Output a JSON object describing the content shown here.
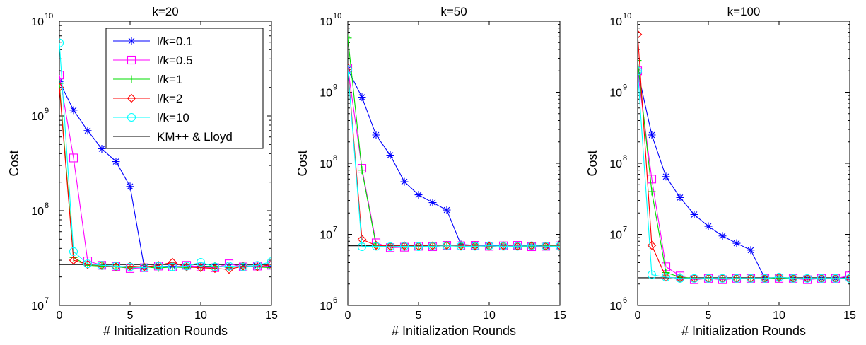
{
  "figure": {
    "colors": {
      "l/k=0.1": "#0000ff",
      "l/k=0.5": "#ff00ff",
      "l/k=1": "#00dd00",
      "l/k=2": "#ff0000",
      "l/k=10": "#00ffff",
      "KM++ & Lloyd": "#000000"
    },
    "markers": {
      "l/k=0.1": "asterisk",
      "l/k=0.5": "square",
      "l/k=1": "plus",
      "l/k=2": "diamond",
      "l/k=10": "circle",
      "KM++ & Lloyd": "none"
    }
  },
  "chart_data": [
    {
      "type": "line",
      "title": "k=20",
      "xlabel": "# Initialization Rounds",
      "ylabel": "Cost",
      "yscale": "log",
      "xlim": [
        0,
        15
      ],
      "ylim": [
        10000000,
        10000000000
      ],
      "xticks": [
        "0",
        "5",
        "10",
        "15"
      ],
      "yticks": [
        {
          "base": "10",
          "exp": "7"
        },
        {
          "base": "10",
          "exp": "8"
        },
        {
          "base": "10",
          "exp": "9"
        },
        {
          "base": "10",
          "exp": "10"
        }
      ],
      "legend": {
        "position": "top-right",
        "entries": [
          "l/k=0.1",
          "l/k=0.5",
          "l/k=1",
          "l/k=2",
          "l/k=10",
          "KM++ & Lloyd"
        ]
      },
      "x": [
        0,
        1,
        2,
        3,
        4,
        5,
        6,
        7,
        8,
        9,
        10,
        11,
        12,
        13,
        14,
        15
      ],
      "series": [
        {
          "name": "l/k=0.1",
          "values": [
            2300000000,
            1150000000,
            700000000,
            450000000,
            330000000,
            180000000,
            25500000,
            25800000,
            26000000,
            25600000,
            26000000,
            25800000,
            25500000,
            26000000,
            26200000,
            26000000
          ]
        },
        {
          "name": "l/k=0.5",
          "values": [
            2700000000,
            360000000,
            29500000,
            26500000,
            25800000,
            24500000,
            25000000,
            26000000,
            25500000,
            26500000,
            25500000,
            25000000,
            27500000,
            25500000,
            26000000,
            26500000
          ]
        },
        {
          "name": "l/k=1",
          "values": [
            2200000000,
            32000000,
            26500000,
            26000000,
            25500000,
            25000000,
            25500000,
            24800000,
            25500000,
            25000000,
            25600000,
            26000000,
            25200000,
            25800000,
            25500000,
            25000000
          ]
        },
        {
          "name": "l/k=2",
          "values": [
            2000000000,
            30000000,
            27000000,
            26500000,
            25500000,
            26000000,
            25500000,
            26500000,
            28500000,
            25500000,
            25000000,
            24500000,
            24000000,
            26000000,
            25500000,
            27000000
          ]
        },
        {
          "name": "l/k=10",
          "values": [
            5900000000,
            37000000,
            27500000,
            26500000,
            26000000,
            25500000,
            25000000,
            26000000,
            25500000,
            26000000,
            28500000,
            25500000,
            26000000,
            25500000,
            26500000,
            29000000
          ]
        },
        {
          "name": "KM++ & Lloyd",
          "values": [
            27000000,
            27000000,
            27000000,
            27000000,
            27000000,
            27000000,
            27000000,
            27000000,
            27000000,
            27000000,
            27000000,
            27000000,
            27000000,
            27000000,
            27000000,
            27000000
          ]
        }
      ]
    },
    {
      "type": "line",
      "title": "k=50",
      "xlabel": "# Initialization Rounds",
      "ylabel": "Cost",
      "yscale": "log",
      "xlim": [
        0,
        15
      ],
      "ylim": [
        1000000,
        10000000000
      ],
      "xticks": [
        "0",
        "5",
        "10",
        "15"
      ],
      "yticks": [
        {
          "base": "10",
          "exp": "6"
        },
        {
          "base": "10",
          "exp": "7"
        },
        {
          "base": "10",
          "exp": "8"
        },
        {
          "base": "10",
          "exp": "9"
        },
        {
          "base": "10",
          "exp": "10"
        }
      ],
      "x": [
        0,
        1,
        2,
        3,
        4,
        5,
        6,
        7,
        8,
        9,
        10,
        11,
        12,
        13,
        14,
        15
      ],
      "series": [
        {
          "name": "l/k=0.1",
          "values": [
            2100000000,
            850000000,
            250000000,
            130000000,
            55000000,
            36000000,
            28000000,
            22000000,
            7200000,
            7000000,
            7000000,
            6900000,
            6800000,
            6900000,
            6800000,
            6900000
          ]
        },
        {
          "name": "l/k=0.5",
          "values": [
            2200000000,
            85000000,
            7600000,
            6500000,
            6600000,
            6800000,
            6700000,
            7000000,
            6900000,
            7000000,
            6800000,
            6900000,
            7000000,
            6700000,
            6800000,
            6900000
          ]
        },
        {
          "name": "l/k=1",
          "values": [
            5800000000,
            80000000,
            7000000,
            6700000,
            6600000,
            6700000,
            6800000,
            6900000,
            6800000,
            6900000,
            6800000,
            6900000,
            6800000,
            6800000,
            6900000,
            6900000
          ]
        },
        {
          "name": "l/k=2",
          "values": [
            2200000000,
            8500000,
            7000000,
            6800000,
            6900000,
            6800000,
            6900000,
            7000000,
            6900000,
            6900000,
            6800000,
            6900000,
            6800000,
            6900000,
            6800000,
            6900000
          ]
        },
        {
          "name": "l/k=10",
          "values": [
            2100000000,
            6700000,
            6800000,
            6700000,
            6800000,
            6700000,
            6800000,
            6900000,
            6800000,
            6800000,
            6900000,
            6800000,
            6800000,
            6900000,
            6800000,
            6800000
          ]
        },
        {
          "name": "KM++ & Lloyd",
          "values": [
            6900000,
            6900000,
            6900000,
            6900000,
            6900000,
            6900000,
            6900000,
            6900000,
            6900000,
            6900000,
            6900000,
            6900000,
            6900000,
            6900000,
            6900000,
            6900000
          ]
        }
      ]
    },
    {
      "type": "line",
      "title": "k=100",
      "xlabel": "# Initialization Rounds",
      "ylabel": "Cost",
      "yscale": "log",
      "xlim": [
        0,
        15
      ],
      "ylim": [
        1000000,
        10000000000
      ],
      "xticks": [
        "0",
        "5",
        "10",
        "15"
      ],
      "yticks": [
        {
          "base": "10",
          "exp": "6"
        },
        {
          "base": "10",
          "exp": "7"
        },
        {
          "base": "10",
          "exp": "8"
        },
        {
          "base": "10",
          "exp": "9"
        },
        {
          "base": "10",
          "exp": "10"
        }
      ],
      "x": [
        0,
        1,
        2,
        3,
        4,
        5,
        6,
        7,
        8,
        9,
        10,
        11,
        12,
        13,
        14,
        15
      ],
      "series": [
        {
          "name": "l/k=0.1",
          "values": [
            2000000000,
            250000000,
            65000000,
            33000000,
            19000000,
            13000000,
            9500000,
            7500000,
            6000000,
            2400000,
            2400000,
            2400000,
            2400000,
            2400000,
            2400000,
            2400000
          ]
        },
        {
          "name": "l/k=0.5",
          "values": [
            2000000000,
            60000000,
            3500000,
            2600000,
            2300000,
            2400000,
            2300000,
            2400000,
            2400000,
            2400000,
            2400000,
            2400000,
            2300000,
            2400000,
            2400000,
            2600000
          ]
        },
        {
          "name": "l/k=1",
          "values": [
            2800000000,
            40000000,
            2900000,
            2500000,
            2400000,
            2400000,
            2400000,
            2400000,
            2400000,
            2400000,
            2400000,
            2400000,
            2400000,
            2400000,
            2400000,
            2400000
          ]
        },
        {
          "name": "l/k=2",
          "values": [
            6500000000,
            7000000,
            2500000,
            2400000,
            2400000,
            2400000,
            2400000,
            2400000,
            2400000,
            2400000,
            2500000,
            2400000,
            2400000,
            2400000,
            2400000,
            2400000
          ]
        },
        {
          "name": "l/k=10",
          "values": [
            2000000000,
            2700000,
            2500000,
            2400000,
            2400000,
            2400000,
            2400000,
            2400000,
            2400000,
            2400000,
            2500000,
            2400000,
            2400000,
            2400000,
            2400000,
            2400000
          ]
        },
        {
          "name": "KM++ & Lloyd",
          "values": [
            2450000,
            2450000,
            2450000,
            2450000,
            2450000,
            2450000,
            2450000,
            2450000,
            2450000,
            2450000,
            2450000,
            2450000,
            2450000,
            2450000,
            2450000,
            2450000
          ]
        }
      ]
    }
  ]
}
